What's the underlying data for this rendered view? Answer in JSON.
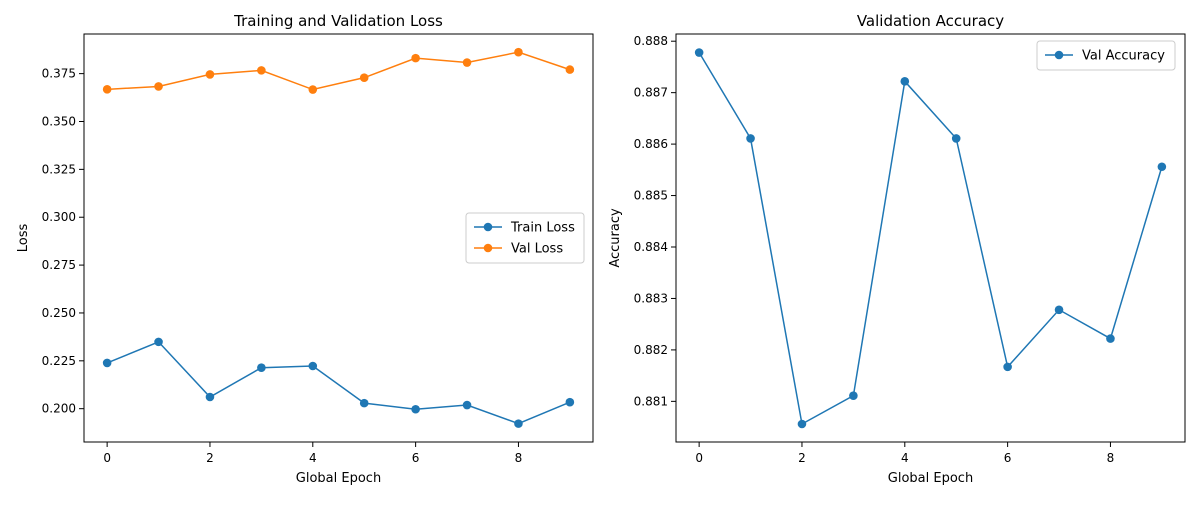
{
  "chart_data": [
    {
      "type": "line",
      "title": "Training and Validation Loss",
      "xlabel": "Global Epoch",
      "ylabel": "Loss",
      "x": [
        0,
        1,
        2,
        3,
        4,
        5,
        6,
        7,
        8,
        9
      ],
      "xlim": [
        -0.45,
        9.45
      ],
      "ylim": [
        0.1826,
        0.3957
      ],
      "xticks": [
        0,
        2,
        4,
        6,
        8
      ],
      "yticks": [
        0.2,
        0.225,
        0.25,
        0.275,
        0.3,
        0.325,
        0.35,
        0.375
      ],
      "ytick_labels": [
        "0.200",
        "0.225",
        "0.250",
        "0.275",
        "0.300",
        "0.325",
        "0.350",
        "0.375"
      ],
      "grid": false,
      "legend": "center-right",
      "series": [
        {
          "name": "Train Loss",
          "color": "#1f77b4",
          "values": [
            0.2239,
            0.2349,
            0.2061,
            0.2214,
            0.2223,
            0.2029,
            0.1997,
            0.2019,
            0.1922,
            0.2034
          ]
        },
        {
          "name": "Val Loss",
          "color": "#ff7f0e",
          "values": [
            0.3668,
            0.3683,
            0.3746,
            0.3767,
            0.3667,
            0.3729,
            0.3831,
            0.3808,
            0.3862,
            0.3771
          ]
        }
      ]
    },
    {
      "type": "line",
      "title": "Validation Accuracy",
      "xlabel": "Global Epoch",
      "ylabel": "Accuracy",
      "x": [
        0,
        1,
        2,
        3,
        4,
        5,
        6,
        7,
        8,
        9
      ],
      "xlim": [
        -0.45,
        9.45
      ],
      "ylim": [
        0.88021,
        0.88814
      ],
      "xticks": [
        0,
        2,
        4,
        6,
        8
      ],
      "yticks": [
        0.881,
        0.882,
        0.883,
        0.884,
        0.885,
        0.886,
        0.887,
        0.888
      ],
      "ytick_labels": [
        "0.881",
        "0.882",
        "0.883",
        "0.884",
        "0.885",
        "0.886",
        "0.887",
        "0.888"
      ],
      "grid": false,
      "legend": "upper-right",
      "series": [
        {
          "name": "Val Accuracy",
          "color": "#1f77b4",
          "values": [
            0.88778,
            0.88611,
            0.88056,
            0.88111,
            0.88722,
            0.88611,
            0.88167,
            0.88278,
            0.88222,
            0.88556
          ]
        }
      ]
    }
  ]
}
